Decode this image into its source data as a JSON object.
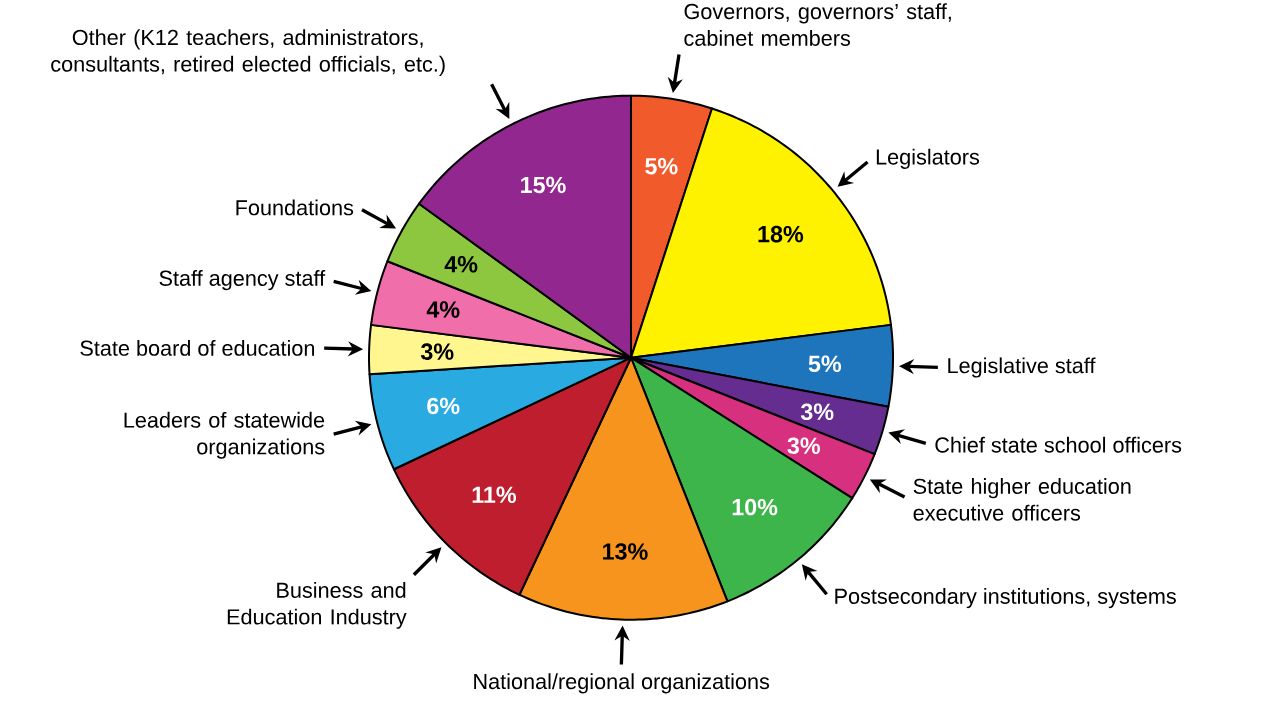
{
  "chart_data": {
    "type": "pie",
    "categories": [
      "Governors, governors’ staff, cabinet members",
      "Legislators",
      "Legislative staff",
      "Chief state school officers",
      "State higher education executive officers",
      "Postsecondary institutions, systems",
      "National/regional organizations",
      "Business and Education Industry",
      "Leaders of statewide organizations",
      "State board of education",
      "Staff agency staff",
      "Foundations",
      "Other (K12 teachers, administrators, consultants, retired elected officials, etc.)"
    ],
    "values": [
      5,
      18,
      5,
      3,
      3,
      10,
      13,
      11,
      6,
      3,
      4,
      4,
      15
    ],
    "value_labels": [
      "5%",
      "18%",
      "5%",
      "3%",
      "3%",
      "10%",
      "13%",
      "11%",
      "6%",
      "3%",
      "4%",
      "4%",
      "15%"
    ],
    "colors": [
      "#f15a2b",
      "#fff200",
      "#1f75bc",
      "#662d91",
      "#d6307f",
      "#3db54a",
      "#f7941d",
      "#be1e2d",
      "#29abe2",
      "#fff68f",
      "#f06ea9",
      "#8dc63f",
      "#92278f"
    ]
  }
}
